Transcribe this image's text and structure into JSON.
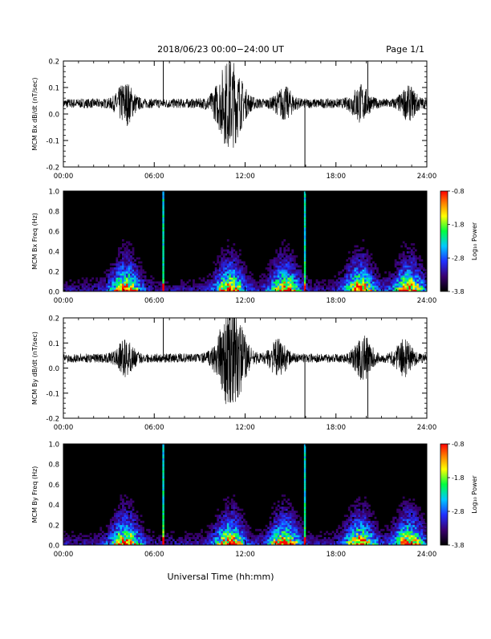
{
  "header": {
    "title": "2018/06/23  00:00−24:00 UT",
    "page": "Page 1/1"
  },
  "footer": {
    "xlabel": "Universal Time (hh:mm)"
  },
  "x_ticks": [
    "00:00",
    "06:00",
    "12:00",
    "18:00",
    "24:00"
  ],
  "colorbar": {
    "label": "Log₁₀ Power",
    "ticks": [
      "-0.8",
      "-1.8",
      "-2.8",
      "-3.8"
    ],
    "range": [
      -3.8,
      -0.8
    ]
  },
  "chart_data": [
    {
      "type": "line",
      "ylabel": "MCM Bx dB/dt (nT/sec)",
      "xlim": [
        0,
        24
      ],
      "ylim": [
        -0.2,
        0.2
      ],
      "y_ticks": [
        "0.2",
        "0.1",
        "0.0",
        "-0.1",
        "-0.2"
      ],
      "baseline": 0.04,
      "spikes": [
        {
          "x": 6.6,
          "y": 0.2
        },
        {
          "x": 15.95,
          "y": -0.2
        },
        {
          "x": 20.1,
          "y": 0.2
        }
      ],
      "activity": [
        {
          "x": 4.1,
          "amp": 0.07
        },
        {
          "x": 11.0,
          "amp": 0.16
        },
        {
          "x": 14.6,
          "amp": 0.05
        },
        {
          "x": 19.6,
          "amp": 0.06
        },
        {
          "x": 22.8,
          "amp": 0.05
        }
      ]
    },
    {
      "type": "heatmap",
      "ylabel": "MCM Bx Freq (Hz)",
      "xlim": [
        0,
        24
      ],
      "ylim": [
        0.0,
        1.0
      ],
      "y_ticks": [
        "1.0",
        "0.8",
        "0.6",
        "0.4",
        "0.2",
        "0.0"
      ],
      "vertical_lines": [
        6.6,
        15.95
      ],
      "activity": [
        4.1,
        11.0,
        14.6,
        19.6,
        22.8
      ]
    },
    {
      "type": "line",
      "ylabel": "MCM By dB/dt (nT/sec)",
      "xlim": [
        0,
        24
      ],
      "ylim": [
        -0.2,
        0.2
      ],
      "y_ticks": [
        "0.2",
        "0.1",
        "0.0",
        "-0.1",
        "-0.2"
      ],
      "baseline": 0.04,
      "spikes": [
        {
          "x": 6.6,
          "y": 0.2
        },
        {
          "x": 15.95,
          "y": -0.2
        },
        {
          "x": 20.1,
          "y": -0.2
        }
      ],
      "activity": [
        {
          "x": 4.1,
          "amp": 0.06
        },
        {
          "x": 11.1,
          "amp": 0.2
        },
        {
          "x": 14.2,
          "amp": 0.06
        },
        {
          "x": 19.8,
          "amp": 0.08
        },
        {
          "x": 22.5,
          "amp": 0.06
        }
      ]
    },
    {
      "type": "heatmap",
      "ylabel": "MCM By Freq (Hz)",
      "xlim": [
        0,
        24
      ],
      "ylim": [
        0.0,
        1.0
      ],
      "y_ticks": [
        "1.0",
        "0.8",
        "0.6",
        "0.4",
        "0.2",
        "0.0"
      ],
      "vertical_lines": [
        6.6,
        15.95
      ],
      "activity": [
        4.1,
        11.0,
        14.6,
        19.6,
        22.8
      ]
    }
  ]
}
